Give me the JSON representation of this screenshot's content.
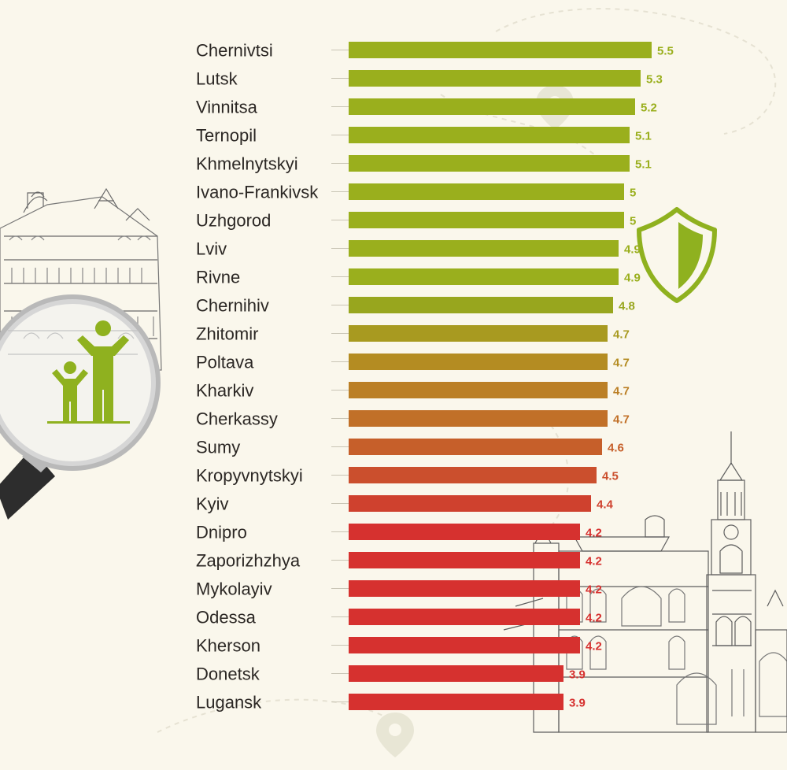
{
  "chart_data": {
    "type": "bar",
    "orientation": "horizontal",
    "title": "",
    "xlabel": "",
    "ylabel": "",
    "xlim": [
      0,
      5.5
    ],
    "grid": false,
    "legend": "none",
    "categories": [
      "Chernivtsi",
      "Lutsk",
      "Vinnitsa",
      "Ternopil",
      "Khmelnytskyi",
      "Ivano-Frankivsk",
      "Uzhgorod",
      "Lviv",
      "Rivne",
      "Chernihiv",
      "Zhitomir",
      "Poltava",
      "Kharkiv",
      "Cherkassy",
      "Sumy",
      "Kropyvnytskyi",
      "Kyiv",
      "Dnipro",
      "Zaporizhzhya",
      "Mykolayiv",
      "Odessa",
      "Kherson",
      "Donetsk",
      "Lugansk"
    ],
    "values": [
      5.5,
      5.3,
      5.2,
      5.1,
      5.1,
      5,
      5,
      4.9,
      4.9,
      4.8,
      4.7,
      4.7,
      4.7,
      4.7,
      4.6,
      4.5,
      4.4,
      4.2,
      4.2,
      4.2,
      4.2,
      4.2,
      3.9,
      3.9
    ],
    "value_labels": [
      "5.5",
      "5.3",
      "5.2",
      "5.1",
      "5.1",
      "5",
      "5",
      "4.9",
      "4.9",
      "4.8",
      "4.7",
      "4.7",
      "4.7",
      "4.7",
      "4.6",
      "4.5",
      "4.4",
      "4.2",
      "4.2",
      "4.2",
      "4.2",
      "4.2",
      "3.9",
      "3.9"
    ],
    "bar_colors": [
      "#9aaf1d",
      "#9aaf1d",
      "#9aaf1d",
      "#9aaf1d",
      "#9aaf1d",
      "#9aaf1d",
      "#9aaf1d",
      "#9aaf1d",
      "#9aaf1d",
      "#98a61e",
      "#a89a20",
      "#b48c22",
      "#bb7f25",
      "#c17028",
      "#c65f2a",
      "#cb4f2d",
      "#cf412e",
      "#d6312f",
      "#d6312f",
      "#d6312f",
      "#d6312f",
      "#d6312f",
      "#d6312f",
      "#d6312f"
    ]
  },
  "colors": {
    "background": "#faf7ec",
    "icon_green": "#8fb11f",
    "sketch": "#555555",
    "lens_rim": "#b9b9b9",
    "handle": "#2d2d2d"
  },
  "icons": {
    "magnifier": "magnifier-icon",
    "people": "parent-child-icon",
    "shield": "shield-icon",
    "pins": "map-pin-icon"
  }
}
